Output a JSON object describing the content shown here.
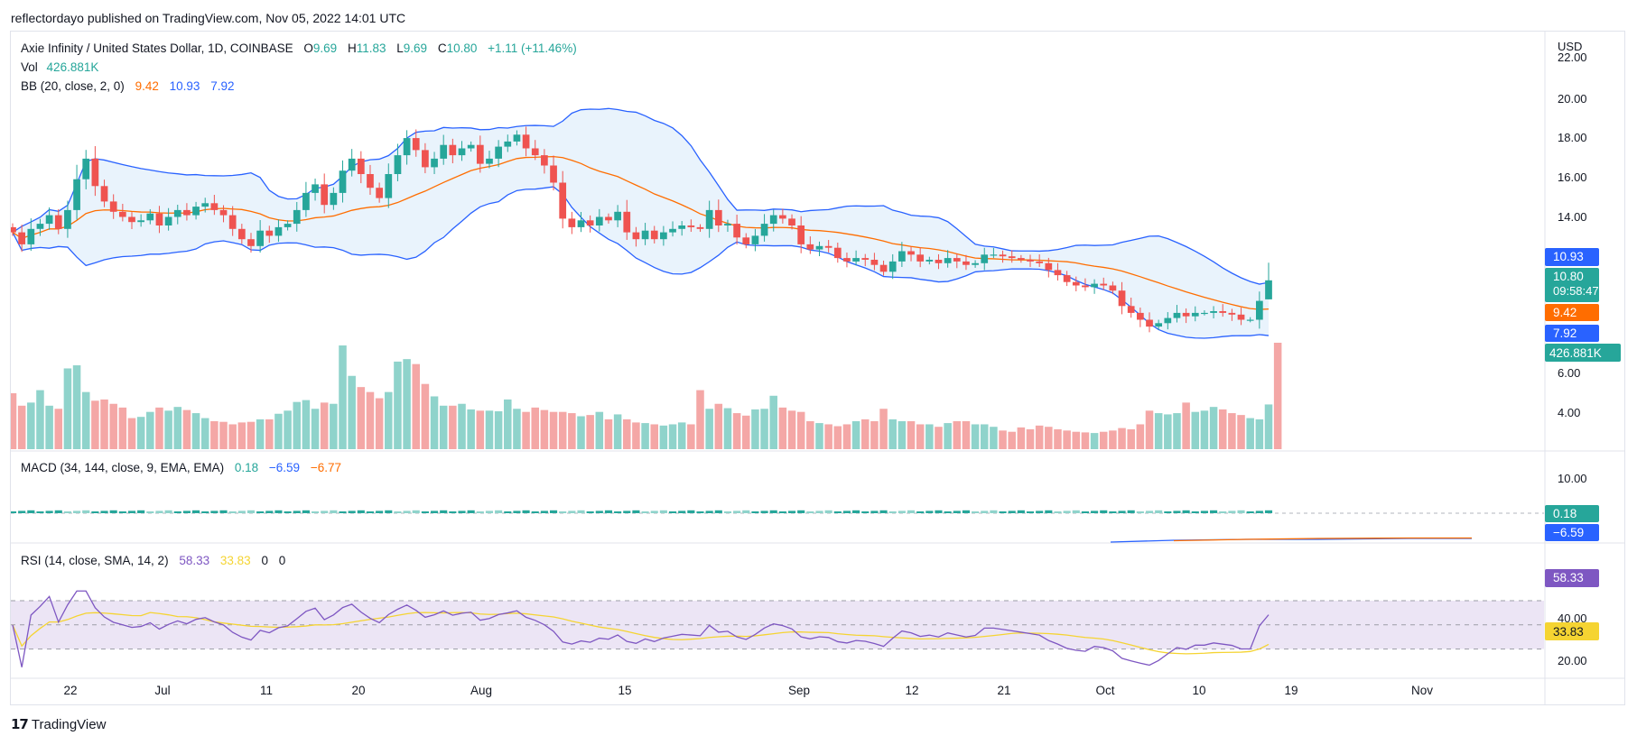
{
  "header": {
    "text": "reflectordayo published on TradingView.com, Nov 05, 2022 14:01 UTC"
  },
  "footer": {
    "brand": "TradingView",
    "logo": "tradingview-logo-icon"
  },
  "colors": {
    "up": "#26a69a",
    "down": "#ef5350",
    "up_vol": "#8fd3cb",
    "down_vol": "#f4a7a6",
    "bb_band": "#2962ff",
    "bb_basis": "#ff6d00",
    "bb_fill": "#e3f0fb",
    "rsi": "#7e57c2",
    "rsi_ma": "#f5d432",
    "rsi_fill": "#ece5f5",
    "macd": "#2962ff",
    "signal": "#ff6d00"
  },
  "legend": {
    "main": {
      "symbol": "Axie Infinity / United States Dollar, 1D, COINBASE",
      "o_label": "O",
      "o": "9.69",
      "h_label": "H",
      "h": "11.83",
      "l_label": "L",
      "l": "9.69",
      "c_label": "C",
      "c": "10.80",
      "change": "+1.11 (+11.46%)"
    },
    "vol": {
      "label": "Vol",
      "value": "426.881K"
    },
    "bb": {
      "label": "BB (20, close, 2, 0)",
      "basis": "9.42",
      "upper": "10.93",
      "lower": "7.92"
    },
    "macd": {
      "label": "MACD (34, 144, close, 9, EMA, EMA)",
      "hist": "0.18",
      "macd": "−6.59",
      "signal": "−6.77"
    },
    "rsi": {
      "label": "RSI (14, close, SMA, 14, 2)",
      "rsi": "58.33",
      "ma": "33.83",
      "v1": "0",
      "v2": "0"
    }
  },
  "axis": {
    "currency": "USD",
    "price_ticks": [
      "22.00",
      "20.00",
      "18.00",
      "16.00",
      "14.00",
      "6.00",
      "4.00"
    ],
    "macd_ticks": [
      "10.00"
    ],
    "rsi_ticks": [
      "40.00",
      "20.00"
    ],
    "x_ticks": [
      "22",
      "Jul",
      "11",
      "20",
      "Aug",
      "15",
      "Sep",
      "12",
      "21",
      "Oct",
      "10",
      "19",
      "Nov"
    ]
  },
  "badges": {
    "bb_upper": "10.93",
    "close": "10.80",
    "countdown": "09:58:47",
    "bb_basis": "9.42",
    "bb_lower": "7.92",
    "volume": "426.881K",
    "macd_hist": "0.18",
    "macd_line": "−6.59",
    "rsi": "58.33",
    "rsi_ma": "33.83"
  },
  "chart_data": {
    "type": "candlestick",
    "symbol": "AXS/USD",
    "interval": "1D",
    "x_range": [
      "2022-06-17",
      "2022-11-05"
    ],
    "price_axis_visible": {
      "min": 12.3,
      "max": 22.0
    },
    "close": [
      13.6,
      12.9,
      13.8,
      14.1,
      14.6,
      13.8,
      14.9,
      16.7,
      17.9,
      16.3,
      15.4,
      14.8,
      14.5,
      14.2,
      14.3,
      14.7,
      14.0,
      14.5,
      14.9,
      14.6,
      15.1,
      15.3,
      14.9,
      14.6,
      13.8,
      13.2,
      12.8,
      13.7,
      13.4,
      13.9,
      14.1,
      14.9,
      15.9,
      16.4,
      15.2,
      15.9,
      17.2,
      17.9,
      17.0,
      16.2,
      15.6,
      17.0,
      18.1,
      19.1,
      18.4,
      17.4,
      17.9,
      18.7,
      18.1,
      18.5,
      18.7,
      17.6,
      17.9,
      18.6,
      18.9,
      19.3,
      18.5,
      18.1,
      17.5,
      16.5,
      14.4,
      13.9,
      14.3,
      14.0,
      14.5,
      14.3,
      14.8,
      13.6,
      13.2,
      13.7,
      13.2,
      13.6,
      13.8,
      14.0,
      13.9,
      13.8,
      14.9,
      14.0,
      14.1,
      13.3,
      12.9,
      13.4,
      14.1,
      14.6,
      14.4,
      14.0,
      12.9,
      12.6,
      12.8,
      12.7,
      12.1,
      11.9,
      12.1,
      12.0,
      11.7,
      11.3,
      11.9,
      12.5,
      12.3,
      11.9,
      12.0,
      11.8,
      12.1,
      11.9,
      11.7,
      11.8,
      12.3,
      12.3,
      12.2,
      12.1,
      12.0,
      11.9,
      11.8,
      11.4,
      11.1,
      10.7,
      10.5,
      10.4,
      10.6,
      10.5,
      10.2,
      9.3,
      8.9,
      8.5,
      8.1,
      8.3,
      8.6,
      8.9,
      8.7,
      8.9,
      8.9,
      9.0,
      8.9,
      8.8,
      8.5,
      8.5,
      9.6,
      10.8
    ],
    "volume_approx_k": [
      90,
      70,
      75,
      95,
      70,
      65,
      130,
      135,
      92,
      78,
      80,
      73,
      67,
      50,
      52,
      60,
      67,
      62,
      68,
      63,
      58,
      50,
      45,
      44,
      40,
      43,
      44,
      48,
      48,
      57,
      62,
      76,
      79,
      65,
      75,
      73,
      167,
      118,
      100,
      92,
      82,
      92,
      141,
      145,
      137,
      105,
      85,
      70,
      70,
      73,
      64,
      62,
      62,
      61,
      80,
      65,
      60,
      67,
      63,
      60,
      60,
      58,
      53,
      55,
      60,
      48,
      56,
      48,
      43,
      42,
      40,
      38,
      40,
      43,
      40,
      95,
      65,
      73,
      66,
      58,
      54,
      64,
      65,
      86,
      67,
      62,
      60,
      45,
      42,
      40,
      37,
      40,
      45,
      48,
      45,
      65,
      48,
      45,
      45,
      40,
      40,
      36,
      42,
      45,
      45,
      40,
      40,
      36,
      30,
      28,
      35,
      32,
      38,
      36,
      32,
      30,
      28,
      27,
      26,
      28,
      30,
      34,
      32,
      40,
      62,
      58,
      56,
      58,
      75,
      60,
      62,
      68,
      64,
      58,
      55,
      50,
      48,
      72,
      426.881
    ],
    "bb_upper_last": 10.93,
    "bb_basis_last": 9.42,
    "bb_lower_last": 7.92,
    "rsi_last": 58.33,
    "rsi_ma_last": 33.83,
    "macd_last": -6.59,
    "signal_last": -6.77,
    "hist_last": 0.18
  }
}
